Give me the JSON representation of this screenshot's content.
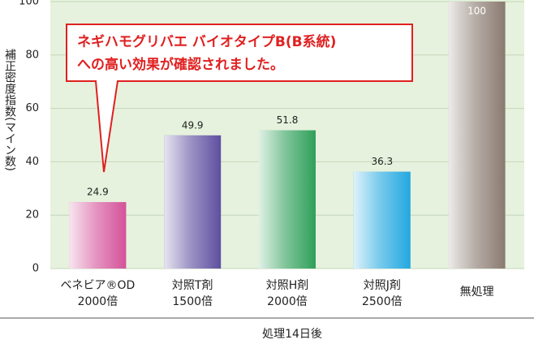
{
  "chart_data": {
    "type": "bar",
    "y_label": "補正密度指数(マイン数)",
    "x_label": "処理14日後",
    "annotation": [
      "ネギハモグリバエ バイオタイプB(B系統)",
      "への高い効果が確認されました。"
    ],
    "categories": [
      [
        "ベネビア®OD",
        "2000倍"
      ],
      [
        "対照T剤",
        "1500倍"
      ],
      [
        "対照H剤",
        "2000倍"
      ],
      [
        "対照J剤",
        "2500倍"
      ],
      [
        "無処理"
      ]
    ],
    "values": [
      24.9,
      49.9,
      51.8,
      36.3,
      100
    ],
    "colors": [
      "#d4529a",
      "#5e4fa0",
      "#2fa05a",
      "#22a8e0",
      "#8a7a70"
    ],
    "ylim": [
      0,
      100
    ],
    "yticks": [
      0,
      20,
      40,
      60,
      80,
      100
    ],
    "grid": true
  }
}
